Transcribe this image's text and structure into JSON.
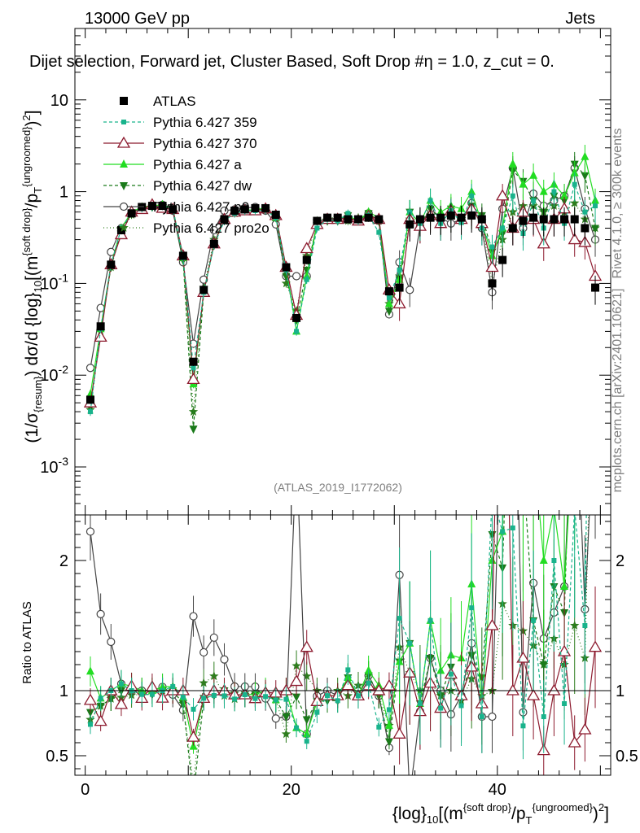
{
  "header": {
    "left": "13000 GeV pp",
    "right": "Jets"
  },
  "title": "Dijet selection, Forward jet, Cluster Based, Soft Drop #η = 1.0, z_cut = 0.",
  "side_texts": {
    "rivet": "Rivet 4.1.0, ≥ 300k events",
    "mcplots": "mcplots.cern.ch [arXiv:2401.10621]"
  },
  "watermark": "(ATLAS_2019_I1772062)",
  "ratio_ylabel": "Ratio to ATLAS",
  "colors": {
    "ATLAS": "#000000",
    "p359": "#19b38c",
    "p370": "#8c1a2e",
    "pa": "#22dd22",
    "pdw": "#1a7a1a",
    "p0": "#444444",
    "pro": "#2e7d1e"
  },
  "chart_data": {
    "type": "scatter",
    "title": "Dijet selection, Forward jet, Cluster Based, Soft Drop #η = 1.0, z_cut = 0.",
    "xlabel": "{log}10[(m^{soft drop}/p_T^{ungroomed})^2]",
    "ylabel": "(1/σ_{resum}) dσ/d {log}10[(m^{soft drop}/p_T^{ungroomed})^2]",
    "xlim": [
      -1,
      51
    ],
    "ylim": [
      0.0003,
      60
    ],
    "yscale": "log",
    "ratio_ylim": [
      0.35,
      2.35
    ],
    "x_ticks": [
      0,
      20,
      40
    ],
    "y_ticks": [
      "10^-3",
      "10^-2",
      "10^-1",
      "1",
      "10"
    ],
    "ratio_ticks": [
      0.5,
      1,
      2
    ],
    "legend": [
      "ATLAS",
      "Pythia 6.427 359",
      "Pythia 6.427 370",
      "Pythia 6.427 a",
      "Pythia 6.427 dw",
      "Pythia 6.427 p0",
      "Pythia 6.427 pro2o"
    ],
    "x": [
      0.5,
      1.5,
      2.5,
      3.5,
      4.5,
      5.5,
      6.5,
      7.5,
      8.5,
      9.5,
      10.5,
      11.5,
      12.5,
      13.5,
      14.5,
      15.5,
      16.5,
      17.5,
      18.5,
      19.5,
      20.5,
      21.5,
      22.5,
      23.5,
      24.5,
      25.5,
      26.5,
      27.5,
      28.5,
      29.5,
      30.5,
      31.5,
      32.5,
      33.5,
      34.5,
      35.5,
      36.5,
      37.5,
      38.5,
      39.5,
      40.5,
      41.5,
      42.5,
      43.5,
      44.5,
      45.5,
      46.5,
      47.5,
      48.5,
      49.5
    ],
    "series": [
      {
        "name": "ATLAS",
        "values": [
          0.0054,
          0.034,
          0.16,
          0.38,
          0.58,
          0.68,
          0.7,
          0.7,
          0.64,
          0.2,
          0.014,
          0.085,
          0.27,
          0.5,
          0.62,
          0.64,
          0.66,
          0.66,
          0.56,
          0.15,
          0.042,
          0.18,
          0.48,
          0.52,
          0.52,
          0.5,
          0.5,
          0.52,
          0.5,
          0.082,
          0.09,
          0.44,
          0.5,
          0.52,
          0.52,
          0.55,
          0.52,
          0.55,
          0.5,
          0.1,
          0.18,
          0.4,
          0.48,
          0.52,
          0.5,
          0.5,
          0.5,
          0.5,
          0.4,
          0.09
        ]
      },
      {
        "name": "Pythia 6.427 359",
        "values": [
          0.004,
          0.032,
          0.16,
          0.4,
          0.58,
          0.66,
          0.68,
          0.7,
          0.66,
          0.19,
          0.012,
          0.08,
          0.26,
          0.48,
          0.58,
          0.62,
          0.62,
          0.63,
          0.52,
          0.14,
          0.03,
          0.11,
          0.4,
          0.5,
          0.48,
          0.58,
          0.48,
          0.55,
          0.36,
          0.07,
          0.14,
          0.6,
          0.45,
          0.8,
          0.45,
          0.62,
          0.46,
          0.9,
          0.4,
          0.25,
          0.4,
          0.9,
          0.35,
          0.8,
          0.4,
          1.0,
          0.45,
          1.2,
          0.6,
          0.7
        ]
      },
      {
        "name": "Pythia 6.427 370",
        "values": [
          0.005,
          0.026,
          0.16,
          0.34,
          0.6,
          0.64,
          0.72,
          0.66,
          0.64,
          0.2,
          0.009,
          0.08,
          0.27,
          0.5,
          0.6,
          0.62,
          0.62,
          0.65,
          0.55,
          0.15,
          0.045,
          0.24,
          0.44,
          0.5,
          0.5,
          0.52,
          0.48,
          0.54,
          0.5,
          0.085,
          0.06,
          0.5,
          0.42,
          0.55,
          0.45,
          0.62,
          0.5,
          0.65,
          0.45,
          0.15,
          0.9,
          0.4,
          0.6,
          0.5,
          0.27,
          0.5,
          0.65,
          0.3,
          0.28,
          0.12
        ]
      },
      {
        "name": "Pythia 6.427 a",
        "values": [
          0.0062,
          0.032,
          0.16,
          0.4,
          0.6,
          0.68,
          0.7,
          0.72,
          0.66,
          0.19,
          0.008,
          0.08,
          0.27,
          0.5,
          0.6,
          0.62,
          0.64,
          0.66,
          0.52,
          0.15,
          0.03,
          0.12,
          0.44,
          0.5,
          0.5,
          0.55,
          0.48,
          0.6,
          0.52,
          0.06,
          0.11,
          0.6,
          0.45,
          0.8,
          0.6,
          0.7,
          0.65,
          1.0,
          0.45,
          0.2,
          0.4,
          2.0,
          1.2,
          1.5,
          1.0,
          1.2,
          0.9,
          1.6,
          2.4,
          0.8
        ]
      },
      {
        "name": "Pythia 6.427 dw",
        "values": [
          0.0045,
          0.03,
          0.15,
          0.38,
          0.58,
          0.66,
          0.68,
          0.7,
          0.64,
          0.18,
          0.0026,
          0.08,
          0.26,
          0.5,
          0.6,
          0.62,
          0.64,
          0.64,
          0.52,
          0.12,
          0.04,
          0.14,
          0.44,
          0.48,
          0.48,
          0.55,
          0.48,
          0.58,
          0.48,
          0.05,
          0.11,
          0.6,
          0.45,
          0.65,
          0.5,
          0.65,
          0.48,
          0.7,
          0.55,
          0.22,
          0.35,
          1.7,
          1.3,
          0.8,
          0.6,
          0.9,
          0.8,
          2.0,
          1.5,
          0.4
        ]
      },
      {
        "name": "Pythia 6.427 p0",
        "values": [
          0.012,
          0.054,
          0.22,
          0.4,
          0.58,
          0.68,
          0.7,
          0.72,
          0.62,
          0.17,
          0.022,
          0.11,
          0.38,
          0.62,
          0.64,
          0.66,
          0.68,
          0.62,
          0.44,
          0.12,
          0.12,
          0.12,
          0.46,
          0.52,
          0.5,
          0.52,
          0.48,
          0.58,
          0.48,
          0.046,
          0.17,
          0.085,
          0.42,
          0.65,
          0.52,
          0.45,
          0.5,
          0.75,
          0.4,
          0.08,
          0.65,
          1.8,
          0.4,
          0.95,
          0.7,
          0.8,
          0.9,
          1.8,
          0.65,
          0.3
        ]
      },
      {
        "name": "Pythia 6.427 pro2o",
        "values": [
          0.0042,
          0.03,
          0.15,
          0.36,
          0.56,
          0.66,
          0.7,
          0.7,
          0.64,
          0.18,
          0.004,
          0.09,
          0.3,
          0.48,
          0.58,
          0.62,
          0.64,
          0.64,
          0.52,
          0.1,
          0.05,
          0.2,
          0.48,
          0.52,
          0.52,
          0.48,
          0.52,
          0.55,
          0.48,
          0.06,
          0.12,
          0.5,
          0.5,
          0.55,
          0.5,
          0.55,
          0.48,
          0.6,
          0.48,
          0.1,
          0.3,
          0.6,
          0.7,
          0.7,
          0.6,
          0.7,
          0.6,
          0.75,
          0.5,
          0.4
        ]
      }
    ]
  }
}
